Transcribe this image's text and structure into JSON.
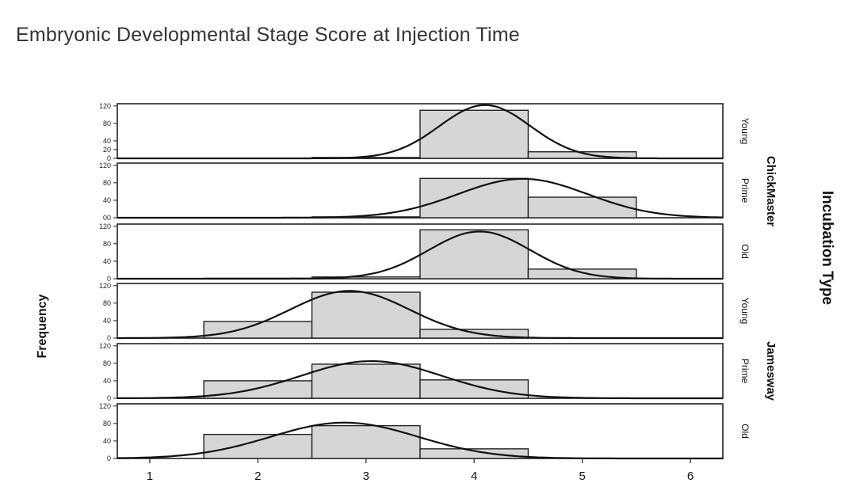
{
  "chart_data": {
    "type": "bar",
    "title": "Embryonic Developmental Stage Score at Injection Time",
    "xlabel": "",
    "ylabel": "Frequency",
    "facet_label": "Incubation Type",
    "x_range": [
      0.7,
      6.3
    ],
    "x_ticks": [
      "1",
      "2",
      "3",
      "4",
      "5",
      "6"
    ],
    "bins": [
      [
        1.5,
        2.5
      ],
      [
        2.5,
        3.5
      ],
      [
        3.5,
        4.5
      ],
      [
        4.5,
        5.5
      ]
    ],
    "ylim": [
      0,
      125
    ],
    "y_ticks_default": [
      "0",
      "40",
      "80",
      "120"
    ],
    "y_ticks_first_panel": [
      "0",
      "20",
      "40",
      "80",
      "120"
    ],
    "y_ticks_prime_cm": [
      "00",
      "40",
      "80",
      "120"
    ],
    "groups": [
      {
        "name": "ChickMaster",
        "rows": [
          0,
          1,
          2
        ]
      },
      {
        "name": "Jamesway",
        "rows": [
          3,
          4,
          5
        ]
      }
    ],
    "panels": [
      {
        "group": "ChickMaster",
        "label": "Young",
        "values": [
          0,
          2,
          110,
          15
        ],
        "mean": 4.1,
        "sd": 0.42,
        "peak": 122
      },
      {
        "group": "ChickMaster",
        "label": "Prime",
        "values": [
          0,
          2,
          90,
          47
        ],
        "mean": 4.45,
        "sd": 0.6,
        "peak": 89
      },
      {
        "group": "ChickMaster",
        "label": "Old",
        "values": [
          1,
          4,
          112,
          22
        ],
        "mean": 4.05,
        "sd": 0.47,
        "peak": 108
      },
      {
        "group": "Jamesway",
        "label": "Young",
        "values": [
          38,
          105,
          20,
          0
        ],
        "mean": 2.85,
        "sd": 0.55,
        "peak": 108
      },
      {
        "group": "Jamesway",
        "label": "Prime",
        "values": [
          40,
          78,
          42,
          0
        ],
        "mean": 3.05,
        "sd": 0.65,
        "peak": 85
      },
      {
        "group": "Jamesway",
        "label": "Old",
        "values": [
          55,
          75,
          22,
          0
        ],
        "mean": 2.8,
        "sd": 0.68,
        "peak": 82
      }
    ]
  }
}
